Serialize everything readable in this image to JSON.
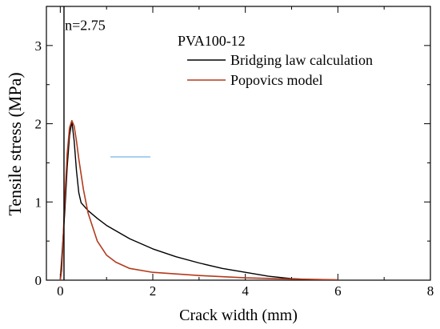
{
  "chart_data": {
    "type": "line",
    "xlabel": "Crack width (mm)",
    "ylabel": "Tensile stress (MPa)",
    "xlim": [
      -0.3,
      8
    ],
    "ylim": [
      0,
      3.5
    ],
    "xticks": [
      0,
      2,
      4,
      6,
      8
    ],
    "yticks": [
      0,
      1,
      2,
      3
    ],
    "grid": false,
    "legend": {
      "placement": "top-right",
      "title": "PVA100-12"
    },
    "annotations": [
      {
        "text": "n=2.75",
        "x": 0.1,
        "y": 3.2
      }
    ],
    "vertical_line": {
      "x": 0.08,
      "color": "#000000"
    },
    "series": [
      {
        "name": "Bridging law calculation",
        "color": "#000000",
        "points": [
          [
            0,
            0
          ],
          [
            0.05,
            0.45
          ],
          [
            0.1,
            0.9
          ],
          [
            0.15,
            1.45
          ],
          [
            0.2,
            1.85
          ],
          [
            0.25,
            2.03
          ],
          [
            0.3,
            1.78
          ],
          [
            0.35,
            1.4
          ],
          [
            0.4,
            1.12
          ],
          [
            0.45,
            0.99
          ],
          [
            0.6,
            0.89
          ],
          [
            0.8,
            0.79
          ],
          [
            1.0,
            0.7
          ],
          [
            1.5,
            0.53
          ],
          [
            2.0,
            0.4
          ],
          [
            2.5,
            0.3
          ],
          [
            3.0,
            0.22
          ],
          [
            3.5,
            0.15
          ],
          [
            4.0,
            0.1
          ],
          [
            4.5,
            0.05
          ],
          [
            5.0,
            0.02
          ],
          [
            5.5,
            0.005
          ],
          [
            6.0,
            0.0
          ]
        ]
      },
      {
        "name": "Popovics model",
        "color": "#b33a1e",
        "points": [
          [
            0.0,
            0.0
          ],
          [
            0.03,
            0.12
          ],
          [
            0.06,
            0.5
          ],
          [
            0.1,
            1.08
          ],
          [
            0.15,
            1.62
          ],
          [
            0.2,
            1.95
          ],
          [
            0.25,
            2.04
          ],
          [
            0.3,
            1.97
          ],
          [
            0.35,
            1.78
          ],
          [
            0.4,
            1.55
          ],
          [
            0.5,
            1.16
          ],
          [
            0.6,
            0.86
          ],
          [
            0.8,
            0.5
          ],
          [
            1.0,
            0.32
          ],
          [
            1.2,
            0.23
          ],
          [
            1.5,
            0.15
          ],
          [
            2.0,
            0.1
          ],
          [
            3.0,
            0.06
          ],
          [
            4.0,
            0.03
          ],
          [
            5.0,
            0.015
          ],
          [
            6.0,
            0.005
          ]
        ]
      }
    ]
  },
  "colors": {
    "axis": "#000000",
    "artifact": "#a8d0f0"
  }
}
